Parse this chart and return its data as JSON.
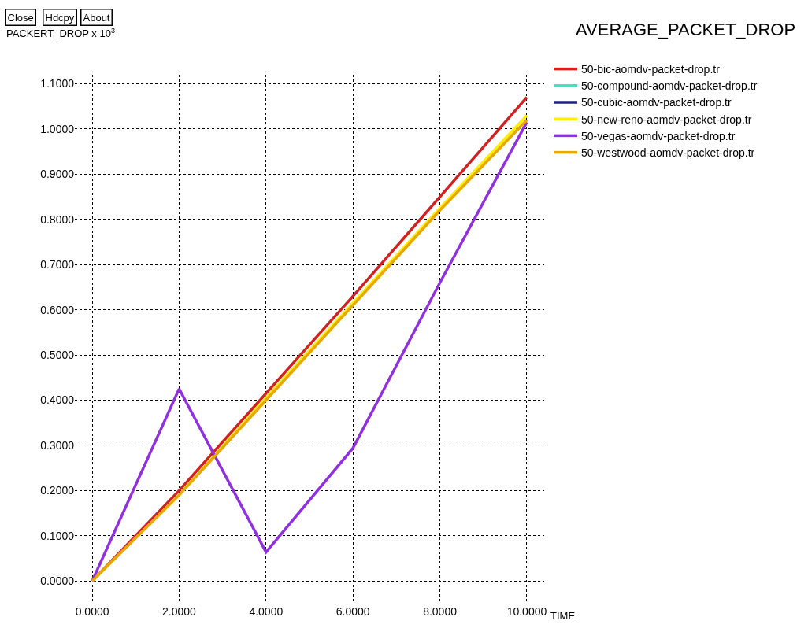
{
  "chart_data": {
    "type": "line",
    "title": "AVERAGE_PACKET_DROP",
    "xlabel": "TIME",
    "ylabel": "PACKERT_DROP x 10$^{3}$",
    "annotations": [
      "Close",
      "Hdcpy",
      "About"
    ],
    "x": [
      0,
      2,
      4,
      6,
      8,
      10
    ],
    "series": [
      {
        "name": "50-bic-aomdv-packet-drop.tr",
        "color": "#d42020",
        "values": [
          0,
          0.2,
          0.415,
          0.63,
          0.85,
          1.07
        ]
      },
      {
        "name": "50-compound-aomdv-packet-drop.tr",
        "color": "#40e0c0",
        "values": [
          null,
          null,
          null,
          null,
          null,
          null
        ]
      },
      {
        "name": "50-cubic-aomdv-packet-drop.tr",
        "color": "#202080",
        "values": [
          null,
          null,
          null,
          null,
          null,
          null
        ]
      },
      {
        "name": "50-new-reno-aomdv-packet-drop.tr",
        "color": "#ffee00",
        "values": [
          0,
          0.19,
          0.405,
          0.615,
          0.825,
          1.03
        ]
      },
      {
        "name": "50-vegas-aomdv-packet-drop.tr",
        "color": "#9030e0",
        "values": [
          0,
          0.425,
          0.064,
          0.294,
          0.66,
          1.015
        ]
      },
      {
        "name": "50-westwood-aomdv-packet-drop.tr",
        "color": "#e8a800",
        "values": [
          0,
          0.19,
          0.4,
          0.61,
          0.82,
          1.02
        ]
      }
    ],
    "xlim": [
      -0.4,
      10.4
    ],
    "ylim": [
      -0.05,
      1.12
    ],
    "xticks": [
      {
        "value": 0,
        "label": "0.0000"
      },
      {
        "value": 2,
        "label": "2.0000"
      },
      {
        "value": 4,
        "label": "4.0000"
      },
      {
        "value": 6,
        "label": "6.0000"
      },
      {
        "value": 8,
        "label": "8.0000"
      },
      {
        "value": 10,
        "label": "10.0000"
      }
    ],
    "yticks": [
      {
        "value": 0,
        "label": "0.0000"
      },
      {
        "value": 0.1,
        "label": "0.1000"
      },
      {
        "value": 0.2,
        "label": "0.2000"
      },
      {
        "value": 0.3,
        "label": "0.3000"
      },
      {
        "value": 0.4,
        "label": "0.4000"
      },
      {
        "value": 0.5,
        "label": "0.5000"
      },
      {
        "value": 0.6,
        "label": "0.6000"
      },
      {
        "value": 0.7,
        "label": "0.7000"
      },
      {
        "value": 0.8,
        "label": "0.8000"
      },
      {
        "value": 0.9,
        "label": "0.9000"
      },
      {
        "value": 1.0,
        "label": "1.0000"
      },
      {
        "value": 1.1,
        "label": "1.1000"
      }
    ],
    "grid": true,
    "legend": "top right",
    "marker": "none",
    "line_style": "solid"
  }
}
